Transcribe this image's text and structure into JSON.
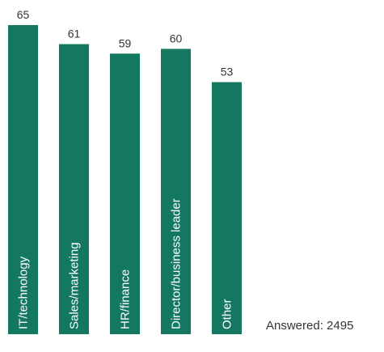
{
  "chart_data": {
    "type": "bar",
    "orientation": "vertical",
    "categories": [
      "IT/technology",
      "Sales/marketing",
      "HR/finance",
      "Director/business leader",
      "Other"
    ],
    "values": [
      65,
      61,
      59,
      60,
      53
    ],
    "title": "",
    "xlabel": "",
    "ylabel": "",
    "ylim": [
      0,
      65
    ],
    "grid": false,
    "legend": "none",
    "category_labels_inside_bars": true,
    "value_labels_above_bars": true,
    "bar_color": "#14775f",
    "note": "Answered: 2495"
  }
}
